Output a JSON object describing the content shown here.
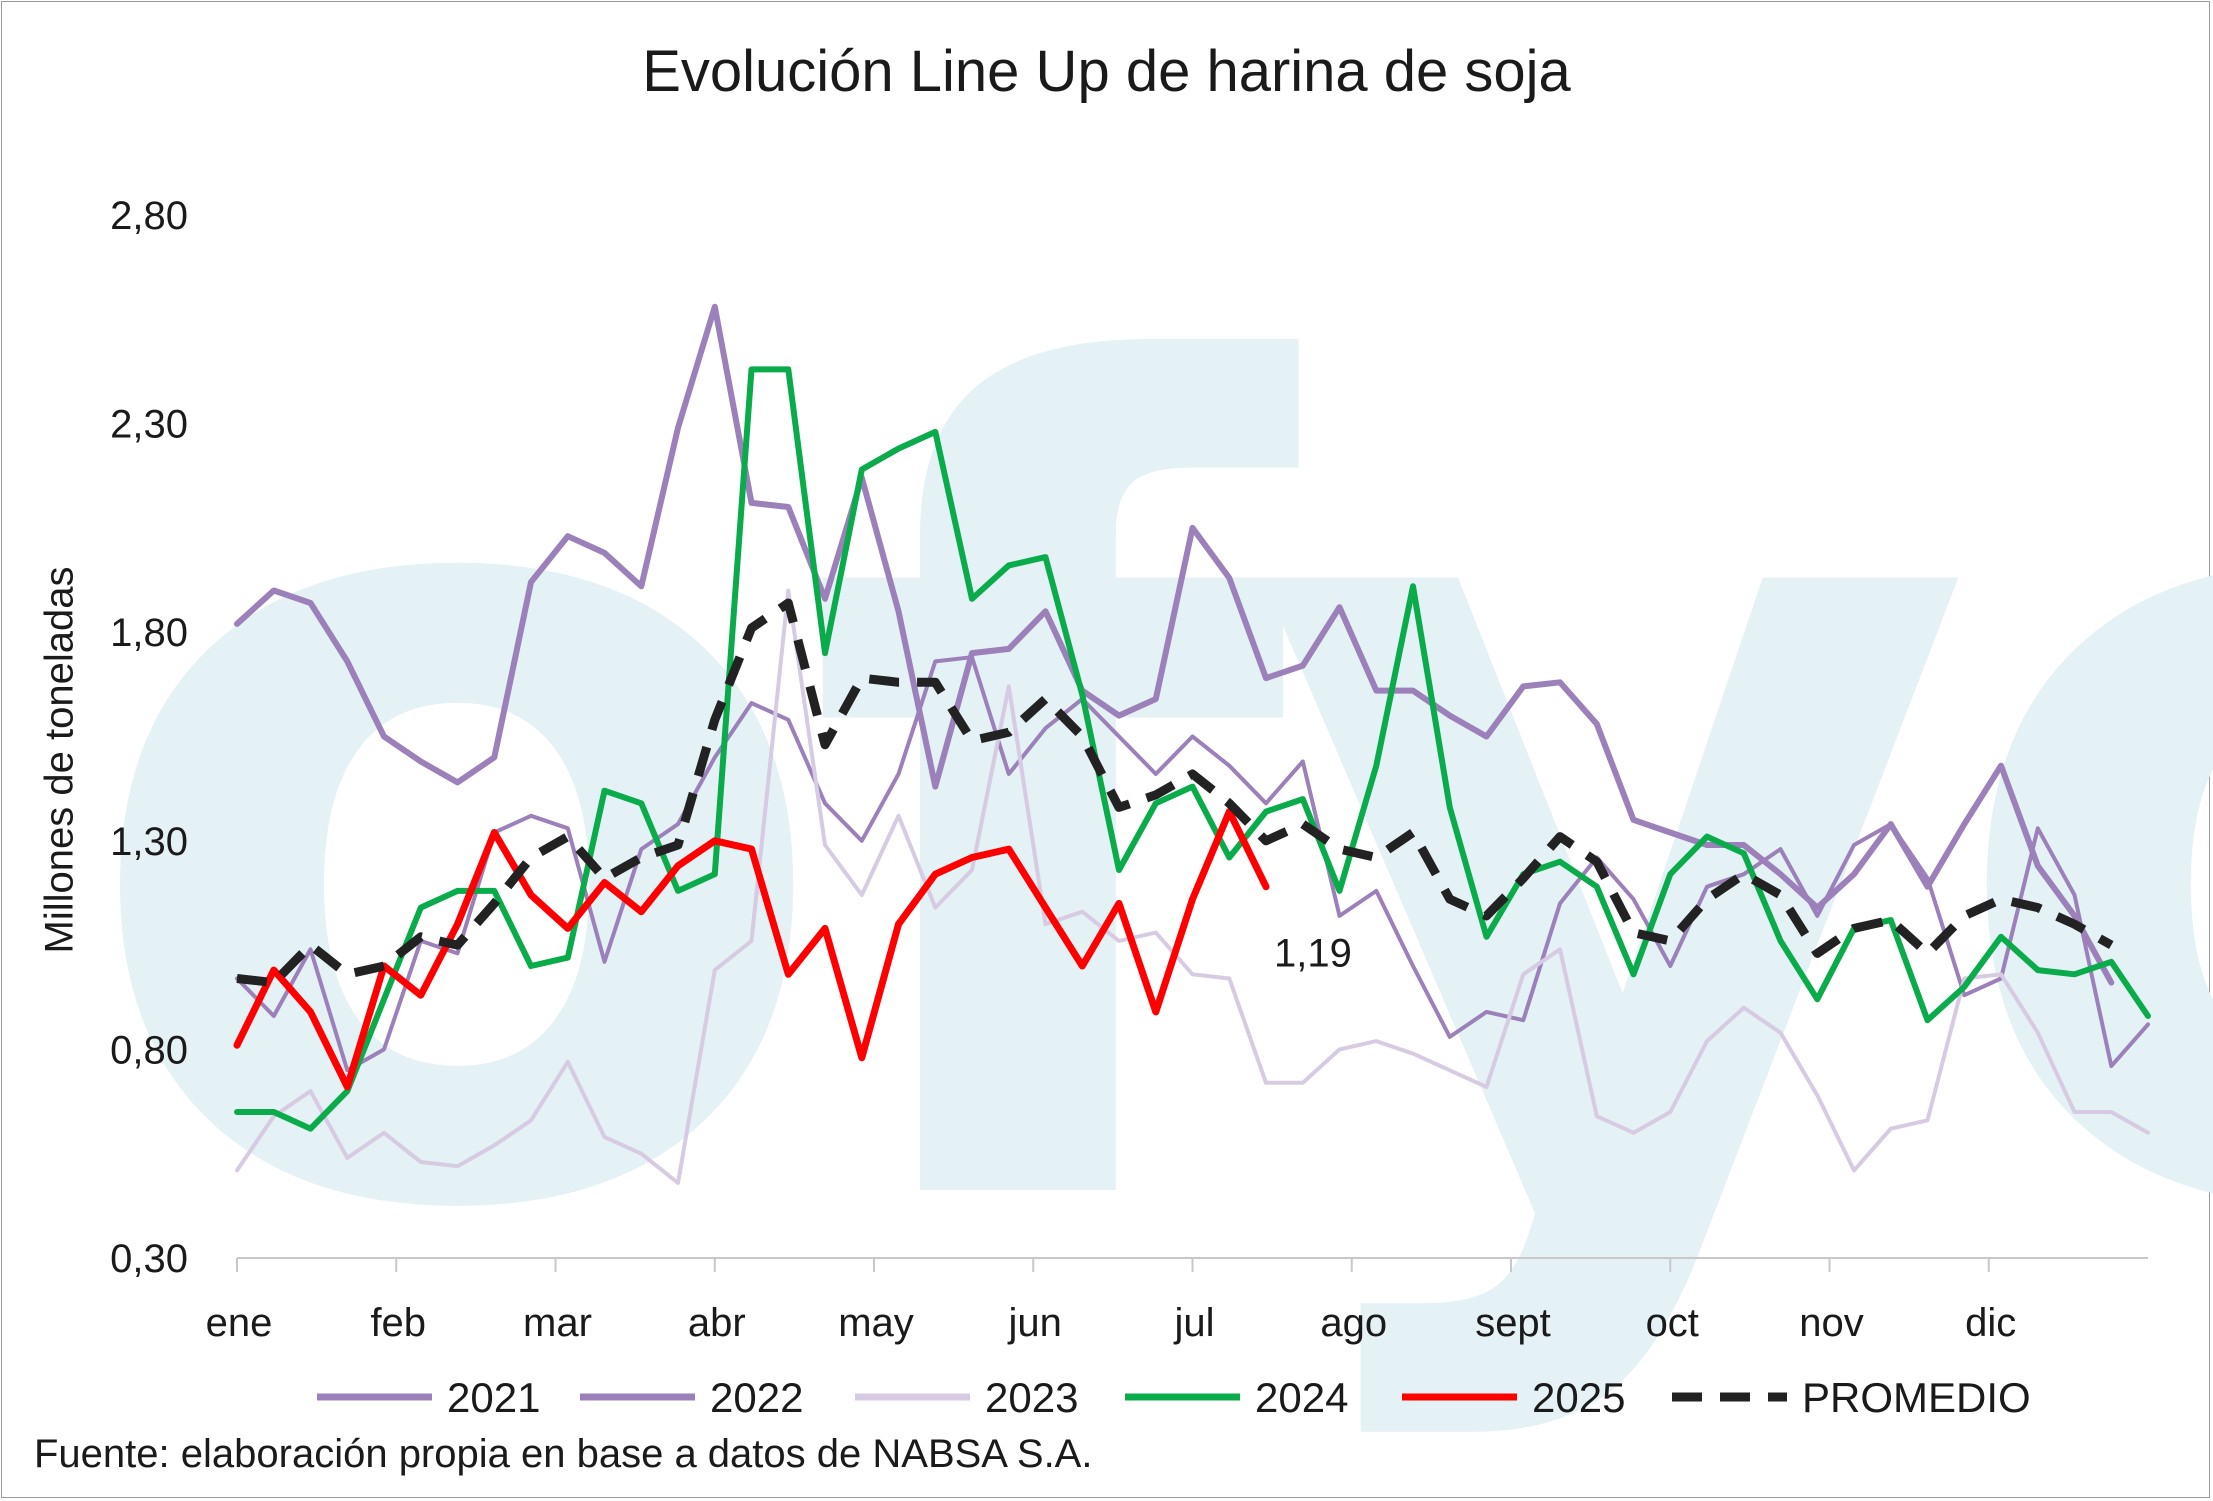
{
  "chart_data": {
    "type": "line",
    "title": "Evolución Line Up de harina de soja",
    "ylabel": "Millones de toneladas",
    "xlabel": "",
    "ylim": [
      0.3,
      2.8
    ],
    "yticks": [
      "2,80",
      "2,30",
      "1,80",
      "1,30",
      "0,80",
      "0,30"
    ],
    "ytick_values": [
      2.8,
      2.3,
      1.8,
      1.3,
      0.8,
      0.3
    ],
    "xticks": [
      "ene",
      "feb",
      "mar",
      "abr",
      "may",
      "jun",
      "jul",
      "ago",
      "sept",
      "oct",
      "nov",
      "dic"
    ],
    "x_unit": "semana",
    "grid": false,
    "legend_position": "bottom",
    "annotation": "1,19",
    "source": "Fuente: elaboración propia en base a datos de NABSA S.A.",
    "watermark": "ofyo",
    "series": [
      {
        "name": "2021",
        "color": "#9b80b9",
        "width": 6,
        "dash": false,
        "values": [
          1.82,
          1.9,
          1.87,
          1.73,
          1.55,
          1.49,
          1.44,
          1.5,
          1.92,
          2.03,
          1.99,
          1.91,
          2.29,
          2.58,
          2.11,
          2.1,
          1.88,
          2.17,
          1.85,
          1.43,
          1.75,
          1.76,
          1.85,
          1.66,
          1.6,
          1.64,
          2.05,
          1.93,
          1.69,
          1.72,
          1.86,
          1.66,
          1.66,
          1.6,
          1.55,
          1.67,
          1.68,
          1.58,
          1.35,
          1.32,
          1.29,
          1.29,
          1.22,
          1.14,
          1.22,
          1.34,
          1.19,
          1.34,
          1.48,
          1.24,
          1.12,
          0.96
        ]
      },
      {
        "name": "2022",
        "color": "#9b80b9",
        "width": 4,
        "dash": false,
        "values": [
          0.97,
          0.88,
          1.04,
          0.75,
          0.8,
          1.06,
          1.03,
          1.32,
          1.36,
          1.33,
          1.01,
          1.28,
          1.34,
          1.5,
          1.63,
          1.59,
          1.39,
          1.3,
          1.46,
          1.73,
          1.74,
          1.46,
          1.57,
          1.64,
          1.55,
          1.46,
          1.55,
          1.48,
          1.39,
          1.49,
          1.12,
          1.18,
          1.0,
          0.83,
          0.89,
          0.87,
          1.15,
          1.26,
          1.16,
          1.0,
          1.19,
          1.22,
          1.28,
          1.12,
          1.29,
          1.34,
          1.21,
          0.93,
          0.97,
          1.33,
          1.17,
          0.76,
          0.86
        ]
      },
      {
        "name": "2023",
        "color": "#d6cbe2",
        "width": 4,
        "dash": false,
        "values": [
          0.51,
          0.64,
          0.7,
          0.54,
          0.6,
          0.53,
          0.52,
          0.57,
          0.63,
          0.77,
          0.59,
          0.55,
          0.48,
          0.99,
          1.06,
          1.9,
          1.29,
          1.17,
          1.36,
          1.14,
          1.23,
          1.67,
          1.1,
          1.13,
          1.06,
          1.08,
          0.98,
          0.97,
          0.72,
          0.72,
          0.8,
          0.82,
          0.79,
          0.75,
          0.71,
          0.98,
          1.04,
          0.64,
          0.6,
          0.65,
          0.82,
          0.9,
          0.84,
          0.69,
          0.51,
          0.61,
          0.63,
          0.97,
          0.98,
          0.84,
          0.65,
          0.65,
          0.6
        ]
      },
      {
        "name": "2024",
        "color": "#0aab4b",
        "width": 6,
        "dash": false,
        "values": [
          0.65,
          0.65,
          0.61,
          0.7,
          0.92,
          1.14,
          1.18,
          1.18,
          1.0,
          1.02,
          1.42,
          1.39,
          1.18,
          1.22,
          2.43,
          2.43,
          1.75,
          2.19,
          2.24,
          2.28,
          1.88,
          1.96,
          1.98,
          1.65,
          1.23,
          1.39,
          1.43,
          1.26,
          1.37,
          1.4,
          1.18,
          1.48,
          1.91,
          1.38,
          1.07,
          1.22,
          1.25,
          1.19,
          0.98,
          1.22,
          1.31,
          1.27,
          1.06,
          0.92,
          1.09,
          1.11,
          0.87,
          0.95,
          1.07,
          0.99,
          0.98,
          1.01,
          0.88
        ]
      },
      {
        "name": "2025",
        "color": "#ff0000",
        "width": 7,
        "dash": false,
        "values": [
          0.81,
          0.99,
          0.89,
          0.71,
          1.0,
          0.93,
          1.1,
          1.32,
          1.17,
          1.09,
          1.2,
          1.13,
          1.24,
          1.3,
          1.28,
          0.98,
          1.09,
          0.78,
          1.1,
          1.22,
          1.26,
          1.28,
          1.14,
          1.0,
          1.15,
          0.89,
          1.16,
          1.37,
          1.19
        ]
      },
      {
        "name": "PROMEDIO",
        "color": "#222222",
        "width": 9,
        "dash": true,
        "values": [
          0.97,
          0.96,
          1.05,
          0.98,
          1.0,
          1.07,
          1.05,
          1.15,
          1.26,
          1.31,
          1.21,
          1.26,
          1.29,
          1.59,
          1.81,
          1.87,
          1.53,
          1.69,
          1.68,
          1.68,
          1.54,
          1.56,
          1.64,
          1.55,
          1.38,
          1.41,
          1.46,
          1.39,
          1.3,
          1.34,
          1.28,
          1.26,
          1.32,
          1.16,
          1.12,
          1.21,
          1.31,
          1.25,
          1.08,
          1.06,
          1.16,
          1.22,
          1.17,
          1.03,
          1.09,
          1.11,
          1.03,
          1.12,
          1.16,
          1.14,
          1.1,
          1.05
        ]
      }
    ]
  }
}
